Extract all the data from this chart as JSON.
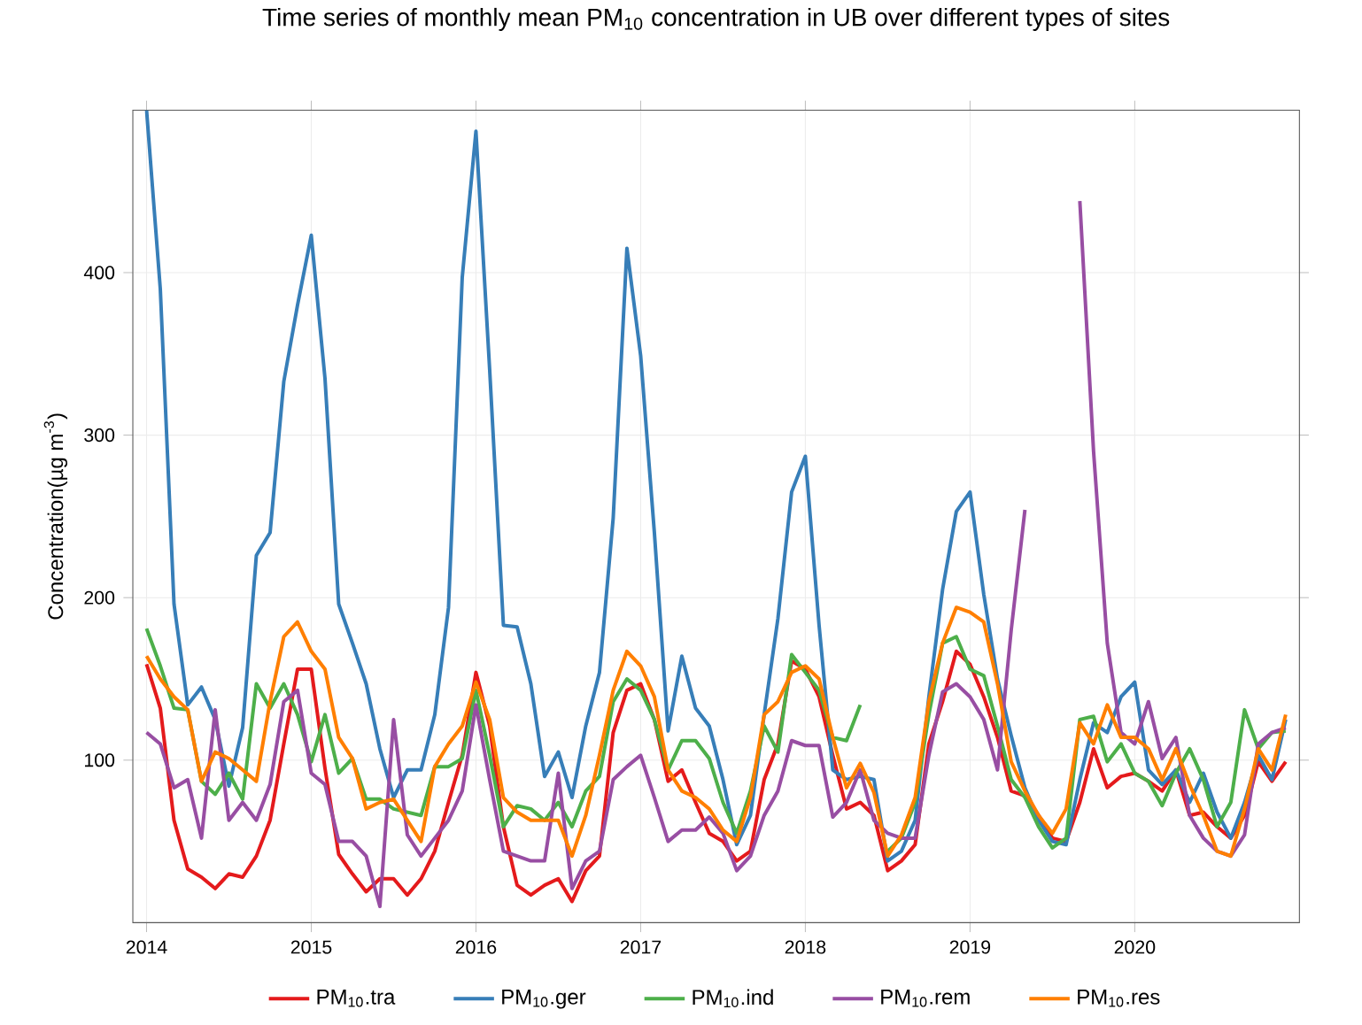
{
  "chart_data": {
    "type": "line",
    "title": "Time series of monthly mean PM$_{10}$ concentration in UB over different types of sites",
    "ylabel": "Concentration(µg m$^{-3}$)",
    "x": [
      "2014-01",
      "2014-02",
      "2014-03",
      "2014-04",
      "2014-05",
      "2014-06",
      "2014-07",
      "2014-08",
      "2014-09",
      "2014-10",
      "2014-11",
      "2014-12",
      "2015-01",
      "2015-02",
      "2015-03",
      "2015-04",
      "2015-05",
      "2015-06",
      "2015-07",
      "2015-08",
      "2015-09",
      "2015-10",
      "2015-11",
      "2015-12",
      "2016-01",
      "2016-02",
      "2016-03",
      "2016-04",
      "2016-05",
      "2016-06",
      "2016-07",
      "2016-08",
      "2016-09",
      "2016-10",
      "2016-11",
      "2016-12",
      "2017-01",
      "2017-02",
      "2017-03",
      "2017-04",
      "2017-05",
      "2017-06",
      "2017-07",
      "2017-08",
      "2017-09",
      "2017-10",
      "2017-11",
      "2017-12",
      "2018-01",
      "2018-02",
      "2018-03",
      "2018-04",
      "2018-05",
      "2018-06",
      "2018-07",
      "2018-08",
      "2018-09",
      "2018-10",
      "2018-11",
      "2018-12",
      "2019-01",
      "2019-02",
      "2019-03",
      "2019-04",
      "2019-05",
      "2019-06",
      "2019-07",
      "2019-08",
      "2019-09",
      "2019-10",
      "2019-11",
      "2019-12",
      "2020-01",
      "2020-02",
      "2020-03",
      "2020-04",
      "2020-05",
      "2020-06",
      "2020-07",
      "2020-08",
      "2020-09",
      "2020-10",
      "2020-11",
      "2020-12"
    ],
    "series": [
      {
        "name": "PM$_{10}$.tra",
        "color": "#e41a1c",
        "values": [
          159,
          132,
          63,
          33,
          28,
          21,
          30,
          28,
          41,
          63,
          110,
          156,
          156,
          95,
          42,
          30,
          19,
          27,
          27,
          17,
          27,
          44,
          74,
          103,
          154,
          121,
          59,
          23,
          17,
          23,
          27,
          13,
          32,
          41,
          117,
          143,
          147,
          125,
          87,
          94,
          74,
          55,
          50,
          38,
          44,
          88,
          110,
          161,
          156,
          139,
          103,
          70,
          74,
          66,
          32,
          38,
          48,
          110,
          136,
          167,
          159,
          139,
          114,
          81,
          78,
          66,
          52,
          50,
          74,
          107,
          83,
          90,
          92,
          87,
          81,
          94,
          66,
          68,
          59,
          52,
          66,
          99,
          87,
          99
        ]
      },
      {
        "name": "PM$_{10}$.ger",
        "color": "#377eb8",
        "values": [
          500,
          390,
          196,
          134,
          145,
          125,
          84,
          120,
          226,
          240,
          333,
          380,
          423,
          335,
          196,
          172,
          147,
          107,
          77,
          94,
          94,
          128,
          194,
          397,
          487,
          340,
          183,
          182,
          147,
          90,
          105,
          77,
          121,
          154,
          249,
          415,
          349,
          240,
          118,
          164,
          132,
          121,
          88,
          48,
          66,
          128,
          187,
          265,
          287,
          183,
          94,
          88,
          90,
          88,
          38,
          44,
          63,
          139,
          205,
          253,
          265,
          202,
          150,
          115,
          83,
          63,
          50,
          48,
          88,
          123,
          117,
          139,
          148,
          94,
          85,
          94,
          74,
          92,
          68,
          52,
          74,
          103,
          88,
          125
        ]
      },
      {
        "name": "PM$_{10}$.ind",
        "color": "#4daf4a",
        "values": [
          181,
          158,
          132,
          131,
          87,
          79,
          92,
          76,
          147,
          132,
          147,
          128,
          99,
          128,
          92,
          101,
          76,
          76,
          70,
          68,
          66,
          96,
          96,
          101,
          143,
          103,
          59,
          72,
          70,
          63,
          74,
          59,
          81,
          90,
          136,
          150,
          143,
          125,
          94,
          112,
          112,
          101,
          74,
          55,
          81,
          121,
          105,
          165,
          154,
          143,
          114,
          112,
          134,
          null,
          44,
          52,
          74,
          128,
          172,
          176,
          156,
          152,
          121,
          88,
          77,
          59,
          46,
          52,
          125,
          127,
          99,
          110,
          92,
          87,
          72,
          92,
          107,
          88,
          59,
          74,
          131,
          107,
          117,
          118
        ]
      },
      {
        "name": "PM$_{10}$.rem",
        "color": "#984ea3",
        "values": [
          117,
          110,
          83,
          88,
          52,
          131,
          63,
          74,
          63,
          85,
          136,
          143,
          92,
          85,
          50,
          50,
          41,
          10,
          125,
          54,
          41,
          52,
          63,
          81,
          134,
          88,
          44,
          41,
          38,
          38,
          92,
          21,
          38,
          44,
          88,
          96,
          103,
          77,
          50,
          57,
          57,
          65,
          55,
          32,
          41,
          66,
          81,
          112,
          109,
          109,
          65,
          74,
          94,
          63,
          55,
          52,
          52,
          103,
          142,
          147,
          139,
          125,
          94,
          180,
          254,
          null,
          null,
          null,
          444,
          290,
          172,
          117,
          110,
          136,
          101,
          114,
          66,
          52,
          44,
          41,
          54,
          110,
          117,
          120
        ]
      },
      {
        "name": "PM$_{10}$.res",
        "color": "#ff7f00",
        "values": [
          164,
          150,
          139,
          131,
          87,
          105,
          101,
          94,
          87,
          136,
          176,
          185,
          167,
          156,
          114,
          101,
          70,
          74,
          76,
          63,
          50,
          96,
          110,
          121,
          148,
          125,
          77,
          68,
          63,
          63,
          63,
          41,
          66,
          103,
          143,
          167,
          158,
          139,
          94,
          81,
          77,
          70,
          57,
          50,
          77,
          128,
          136,
          154,
          158,
          150,
          114,
          83,
          98,
          80,
          41,
          54,
          77,
          136,
          172,
          194,
          191,
          185,
          147,
          99,
          81,
          66,
          55,
          70,
          123,
          110,
          134,
          114,
          114,
          107,
          88,
          107,
          85,
          66,
          44,
          41,
          70,
          107,
          94,
          128
        ]
      }
    ],
    "xlim": [
      "2013-12",
      "2021-01"
    ],
    "xticks": [
      {
        "value": "2014-01",
        "label": "2014"
      },
      {
        "value": "2015-01",
        "label": "2015"
      },
      {
        "value": "2016-01",
        "label": "2016"
      },
      {
        "value": "2017-01",
        "label": "2017"
      },
      {
        "value": "2018-01",
        "label": "2018"
      },
      {
        "value": "2019-01",
        "label": "2019"
      },
      {
        "value": "2020-01",
        "label": "2020"
      }
    ],
    "ylim": [
      0,
      500
    ],
    "yticks": [
      100,
      200,
      300,
      400
    ],
    "grid": true,
    "legend": "bottom",
    "marker": "none",
    "line_style": "solid"
  }
}
